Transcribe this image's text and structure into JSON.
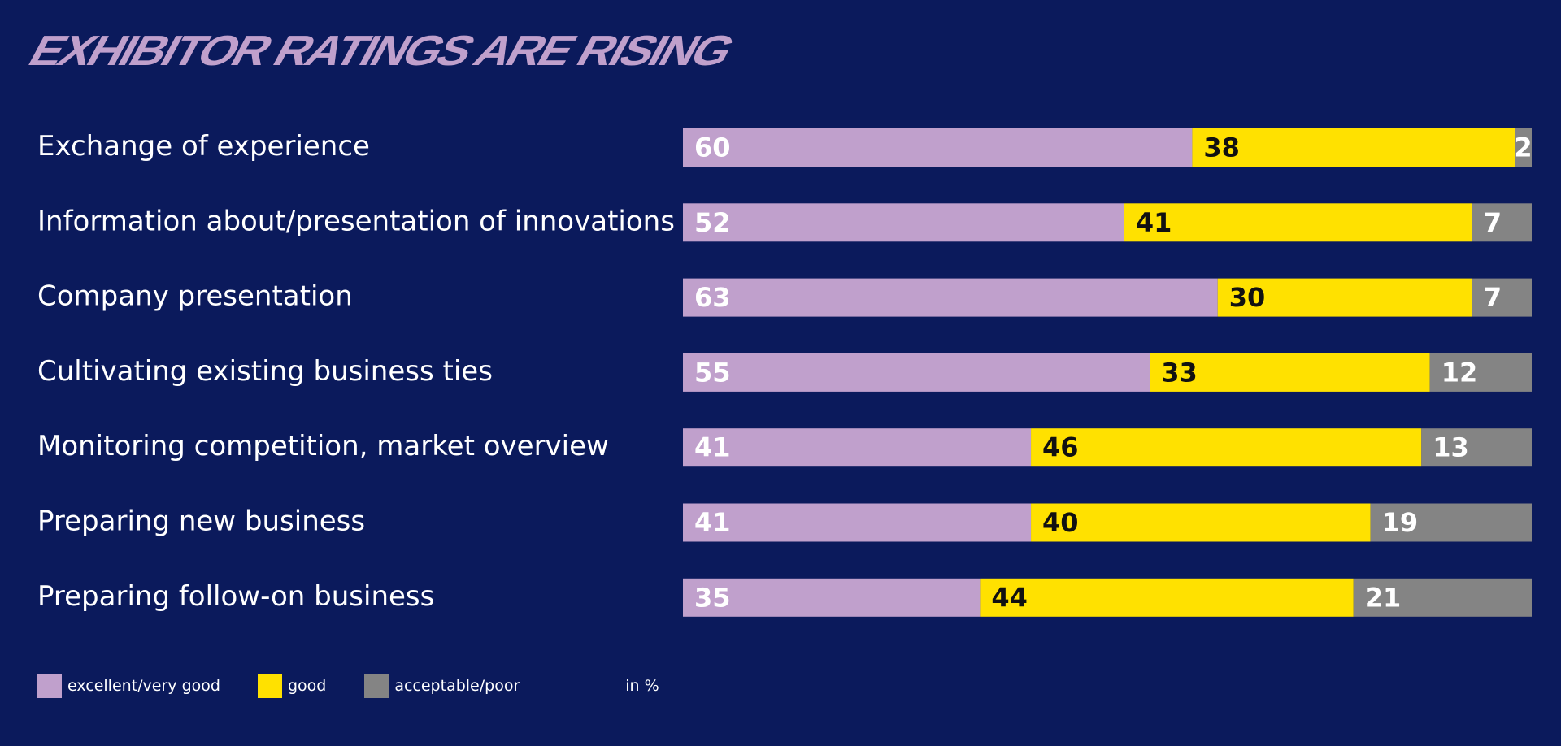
{
  "chart_data": {
    "type": "bar",
    "orientation": "horizontal",
    "stacked": true,
    "title": "EXHIBITOR RATINGS ARE RISING",
    "unit_label": "in %",
    "categories": [
      "Exchange of experience",
      "Information about/presentation of innovations",
      "Company presentation",
      "Cultivating existing business ties",
      "Monitoring competition, market overview",
      "Preparing new business",
      "Preparing follow-on business"
    ],
    "series": [
      {
        "name": "excellent/very good",
        "color": "#c0a0cc",
        "label_color": "#ffffff",
        "values": [
          60,
          52,
          63,
          55,
          41,
          41,
          35
        ]
      },
      {
        "name": "good",
        "color": "#ffe100",
        "label_color": "#111111",
        "values": [
          38,
          41,
          30,
          33,
          46,
          40,
          44
        ]
      },
      {
        "name": "acceptable/poor",
        "color": "#848484",
        "label_color": "#ffffff",
        "values": [
          2,
          7,
          7,
          12,
          13,
          19,
          21
        ]
      }
    ],
    "xlim": [
      0,
      100
    ],
    "grid": false,
    "legend_position": "bottom-left"
  },
  "colors": {
    "background": "#0b1a5c",
    "title": "#c0a0cc",
    "text": "#ffffff"
  }
}
